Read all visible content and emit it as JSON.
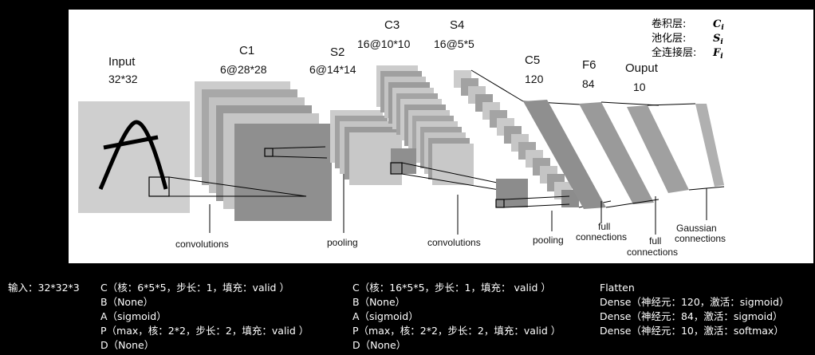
{
  "diagram": {
    "layers": [
      {
        "name": "Input",
        "dims": "32*32"
      },
      {
        "name": "C1",
        "dims": "6@28*28"
      },
      {
        "name": "S2",
        "dims": "6@14*14"
      },
      {
        "name": "C3",
        "dims": "16@10*10"
      },
      {
        "name": "S4",
        "dims": "16@5*5"
      },
      {
        "name": "C5",
        "dims": "120"
      },
      {
        "name": "F6",
        "dims": "84"
      },
      {
        "name": "Ouput",
        "dims": "10"
      }
    ],
    "operations": [
      {
        "line1": "convolutions",
        "line2": ""
      },
      {
        "line1": "pooling",
        "line2": ""
      },
      {
        "line1": "convolutions",
        "line2": ""
      },
      {
        "line1": "pooling",
        "line2": ""
      },
      {
        "line1": "full",
        "line2": "connections"
      },
      {
        "line1": "full",
        "line2": "connections"
      },
      {
        "line1": "Gaussian",
        "line2": "connections"
      }
    ],
    "legend": [
      {
        "label": "卷积层:",
        "symbol": "C",
        "sub": "i"
      },
      {
        "label": "池化层:",
        "symbol": "S",
        "sub": "i"
      },
      {
        "label": "全连接层:",
        "symbol": "F",
        "sub": "i"
      }
    ]
  },
  "columns": [
    {
      "lines": [
        "输入：32*32*3"
      ]
    },
    {
      "lines": [
        "C（核：6*5*5，步长：1，填充：valid ）",
        "B（None）",
        "A（sigmoid）",
        "P（max，核：2*2，步长：2，填充：valid ）",
        "D（None）"
      ]
    },
    {
      "lines": [
        "C（核：16*5*5，步长：1，填充： valid ）",
        "B（None）",
        "A（sigmoid）",
        "P（max，核：2*2，步长：2，填充：valid ）",
        "D（None）"
      ]
    },
    {
      "lines": [
        "Flatten",
        "Dense（神经元：120，激活：sigmoid）",
        "Dense（神经元：84，激活：sigmoid）",
        "Dense（神经元：10，激活：softmax）"
      ]
    }
  ]
}
